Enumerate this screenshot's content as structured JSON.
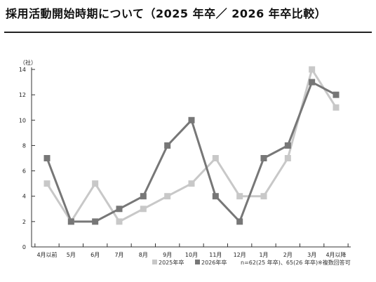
{
  "title": "採用活動開始時期について（2025 年卒／ 2026 年卒比較）",
  "chart_data": {
    "type": "line",
    "ylabel": "（社）",
    "ylim": [
      0,
      14
    ],
    "yticks": [
      0,
      2,
      4,
      6,
      8,
      10,
      12,
      14
    ],
    "categories": [
      "4月以前",
      "5月",
      "6月",
      "7月",
      "8月",
      "9月",
      "10月",
      "11月",
      "12月",
      "1月",
      "2月",
      "3月",
      "4月以降"
    ],
    "series": [
      {
        "name": "2025年卒",
        "color": "#c8c8c8",
        "values": [
          5,
          2,
          5,
          2,
          3,
          4,
          5,
          7,
          4,
          4,
          7,
          14,
          11
        ]
      },
      {
        "name": "2026年卒",
        "color": "#777777",
        "values": [
          7,
          2,
          2,
          3,
          4,
          8,
          10,
          4,
          2,
          7,
          8,
          13,
          12
        ]
      }
    ],
    "footnote": "n=62(25 年卒)、65(26 年卒)※複数回答可"
  }
}
